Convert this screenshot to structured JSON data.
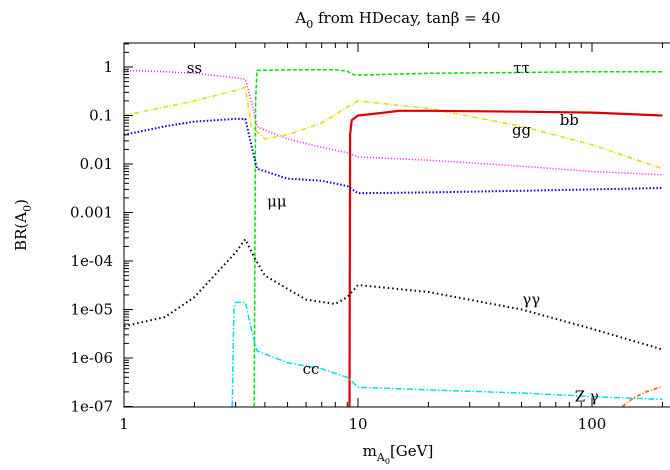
{
  "chart_data": {
    "type": "line",
    "title": "A0 from HDecay, tanβ = 40",
    "title_parts": {
      "base": "A",
      "sub": "0",
      "rest": " from HDecay, tanβ = 40"
    },
    "xlabel": "mA0[GeV]",
    "xlabel_parts": {
      "base": "m",
      "sub": "A",
      "subsub": "0",
      "rest": "[GeV]"
    },
    "ylabel": "BR(A0)",
    "ylabel_parts": {
      "base": "BR(A",
      "sub": "0",
      "rest": ")"
    },
    "x_scale": "log",
    "y_scale": "log",
    "xlim": [
      1,
      200
    ],
    "ylim": [
      1e-07,
      3
    ],
    "grid": false,
    "legend": "none (series labeled inline)",
    "x_ticks": [
      {
        "value": 1,
        "label": "1"
      },
      {
        "value": 10,
        "label": "10"
      },
      {
        "value": 100,
        "label": "100"
      }
    ],
    "y_ticks": [
      {
        "value": 1,
        "label": "1"
      },
      {
        "value": 0.1,
        "label": "0.1"
      },
      {
        "value": 0.01,
        "label": "0.01"
      },
      {
        "value": 0.001,
        "label": "0.001"
      },
      {
        "value": 0.0001,
        "label": "1e-04"
      },
      {
        "value": 1e-05,
        "label": "1e-05"
      },
      {
        "value": 1e-06,
        "label": "1e-06"
      },
      {
        "value": 1e-07,
        "label": "1e-07"
      }
    ],
    "series": [
      {
        "name": "ss",
        "label": "ss",
        "color": "#ff00ff",
        "dash": "1,2",
        "width": 1.5,
        "label_at": [
          2,
          0.95
        ],
        "points": [
          [
            1,
            0.85
          ],
          [
            1.5,
            0.8
          ],
          [
            2,
            0.74
          ],
          [
            3,
            0.6
          ],
          [
            3.3,
            0.56
          ],
          [
            3.5,
            0.2
          ],
          [
            3.7,
            0.06
          ],
          [
            4,
            0.05
          ],
          [
            5,
            0.033
          ],
          [
            7,
            0.022
          ],
          [
            9,
            0.017
          ],
          [
            10,
            0.014
          ],
          [
            20,
            0.012
          ],
          [
            50,
            0.009
          ],
          [
            100,
            0.007
          ],
          [
            200,
            0.006
          ]
        ]
      },
      {
        "name": "ττ",
        "label": "ττ",
        "color": "#00dd00",
        "dash": "4,2",
        "width": 1.5,
        "label_at": [
          50,
          0.95
        ],
        "points": [
          [
            3.6,
            1e-07
          ],
          [
            3.65,
            0.2
          ],
          [
            3.7,
            0.85
          ],
          [
            5,
            0.87
          ],
          [
            8,
            0.88
          ],
          [
            9,
            0.82
          ],
          [
            9.5,
            0.7
          ],
          [
            10,
            0.68
          ],
          [
            20,
            0.74
          ],
          [
            50,
            0.77
          ],
          [
            100,
            0.8
          ],
          [
            200,
            0.8
          ]
        ]
      },
      {
        "name": "gg",
        "label": "gg",
        "color": "#dddd00",
        "dash": "5,2,1,2",
        "width": 1.5,
        "label_at": [
          50,
          0.05
        ],
        "points": [
          [
            1,
            0.1
          ],
          [
            2,
            0.2
          ],
          [
            3,
            0.33
          ],
          [
            3.3,
            0.38
          ],
          [
            3.5,
            0.06
          ],
          [
            4,
            0.033
          ],
          [
            5,
            0.04
          ],
          [
            7,
            0.07
          ],
          [
            9,
            0.15
          ],
          [
            10,
            0.2
          ],
          [
            20,
            0.14
          ],
          [
            50,
            0.06
          ],
          [
            100,
            0.025
          ],
          [
            200,
            0.008
          ]
        ]
      },
      {
        "name": "bb",
        "label": "bb",
        "color": "#dd0000",
        "dash": "",
        "width": 2.2,
        "label_at": [
          80,
          0.08
        ],
        "points": [
          [
            9.2,
            1e-07
          ],
          [
            9.25,
            0.04
          ],
          [
            9.4,
            0.08
          ],
          [
            10,
            0.1
          ],
          [
            12,
            0.11
          ],
          [
            15,
            0.125
          ],
          [
            20,
            0.125
          ],
          [
            50,
            0.12
          ],
          [
            100,
            0.115
          ],
          [
            200,
            0.1
          ]
        ]
      },
      {
        "name": "μμ",
        "label": "μμ",
        "color": "#0000cc",
        "dash": "1.5,2",
        "width": 2,
        "label_at": [
          4.5,
          0.0017
        ],
        "points": [
          [
            1,
            0.04
          ],
          [
            1.5,
            0.06
          ],
          [
            2,
            0.075
          ],
          [
            3,
            0.085
          ],
          [
            3.3,
            0.085
          ],
          [
            3.5,
            0.025
          ],
          [
            3.7,
            0.008
          ],
          [
            5,
            0.005
          ],
          [
            7,
            0.0045
          ],
          [
            9,
            0.0035
          ],
          [
            10,
            0.0025
          ],
          [
            20,
            0.0026
          ],
          [
            50,
            0.0028
          ],
          [
            100,
            0.003
          ],
          [
            200,
            0.0032
          ]
        ]
      },
      {
        "name": "γγ",
        "label": "γγ",
        "color": "#000000",
        "dash": "1.5,3",
        "width": 2,
        "label_at": [
          55,
          1.6e-05
        ],
        "points": [
          [
            1,
            4.5e-06
          ],
          [
            1.5,
            7e-06
          ],
          [
            2,
            1.8e-05
          ],
          [
            3,
            0.00015
          ],
          [
            3.3,
            0.00028
          ],
          [
            3.6,
            0.00012
          ],
          [
            4,
            5e-05
          ],
          [
            6,
            1.6e-05
          ],
          [
            8,
            1.3e-05
          ],
          [
            9,
            1.8e-05
          ],
          [
            10,
            3.2e-05
          ],
          [
            20,
            2.3e-05
          ],
          [
            50,
            1e-05
          ],
          [
            100,
            4e-06
          ],
          [
            200,
            1.5e-06
          ]
        ]
      },
      {
        "name": "cc",
        "label": "cc",
        "color": "#00ddee",
        "dash": "6,2,1.5,2",
        "width": 1.5,
        "label_at": [
          6.3,
          6e-07
        ],
        "points": [
          [
            2.9,
            1e-07
          ],
          [
            2.95,
            1e-05
          ],
          [
            3.0,
            1.4e-05
          ],
          [
            3.3,
            1.4e-05
          ],
          [
            3.5,
            4e-06
          ],
          [
            3.7,
            1.4e-06
          ],
          [
            5,
            8e-07
          ],
          [
            7,
            6e-07
          ],
          [
            9,
            4e-07
          ],
          [
            10,
            2.5e-07
          ],
          [
            20,
            2.2e-07
          ],
          [
            50,
            1.9e-07
          ],
          [
            100,
            1.6e-07
          ],
          [
            200,
            1.4e-07
          ]
        ]
      },
      {
        "name": "Zγ",
        "label": "Z γ",
        "color": "#ff6600",
        "dash": "4,2,1,2",
        "width": 1.8,
        "label_at": [
          95,
          1.6e-07
        ],
        "points": [
          [
            135,
            1e-07
          ],
          [
            150,
            1.5e-07
          ],
          [
            170,
            2e-07
          ],
          [
            200,
            2.6e-07
          ]
        ]
      }
    ]
  }
}
